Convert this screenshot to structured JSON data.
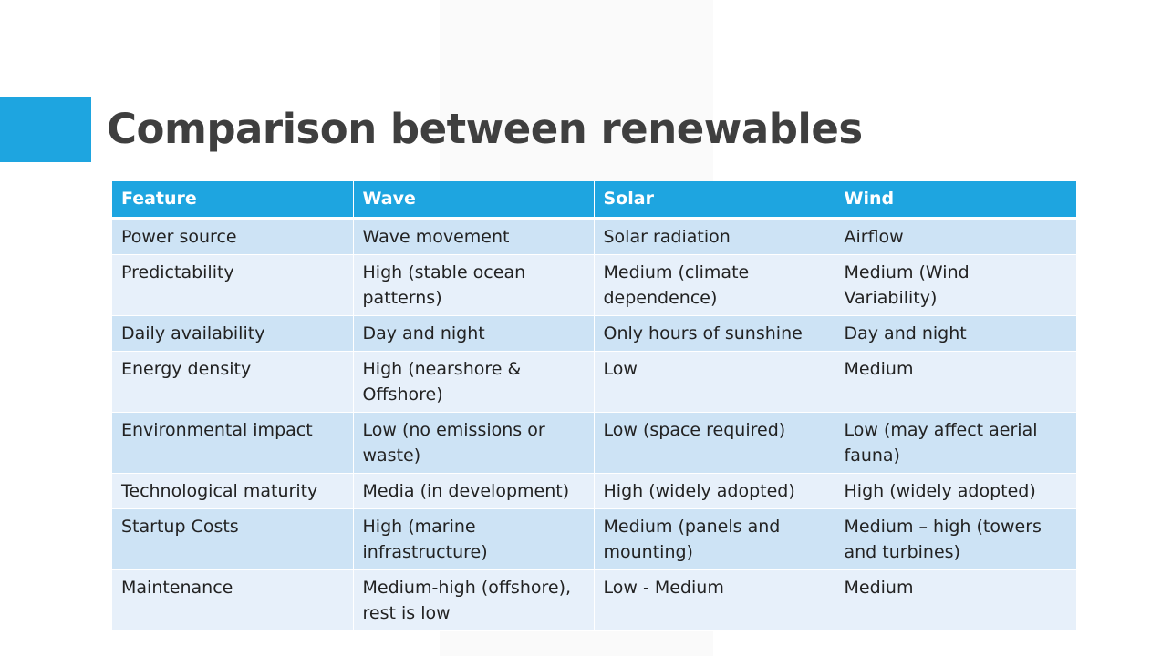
{
  "slide": {
    "title": "Comparison between renewables",
    "colors": {
      "accent": "#1ea5e0",
      "header_bg": "#1ea5e0",
      "row_odd": "#cde3f5",
      "row_even": "#e7f0fa",
      "title_text": "#3f3f3f"
    }
  },
  "table": {
    "headers": [
      "Feature",
      "Wave",
      "Solar",
      "Wind"
    ],
    "rows": [
      [
        "Power source",
        "Wave movement",
        "Solar radiation",
        "Airflow"
      ],
      [
        "Predictability",
        "High (stable ocean patterns)",
        "Medium (climate dependence)",
        "Medium (Wind Variability)"
      ],
      [
        "Daily availability",
        "Day and night",
        "Only hours of sunshine",
        "Day and night"
      ],
      [
        "Energy density",
        "High (nearshore & Offshore)",
        "Low",
        "Medium"
      ],
      [
        "Environmental impact",
        "Low (no emissions or waste)",
        "Low (space required)",
        "Low (may affect aerial fauna)"
      ],
      [
        "Technological maturity",
        "Media (in development)",
        "High (widely adopted)",
        "High (widely adopted)"
      ],
      [
        "Startup Costs",
        "High (marine infrastructure)",
        "Medium (panels and mounting)",
        "Medium – high (towers and turbines)"
      ],
      [
        "Maintenance",
        "Medium-high (offshore), rest is low",
        "Low - Medium",
        "Medium"
      ]
    ]
  }
}
